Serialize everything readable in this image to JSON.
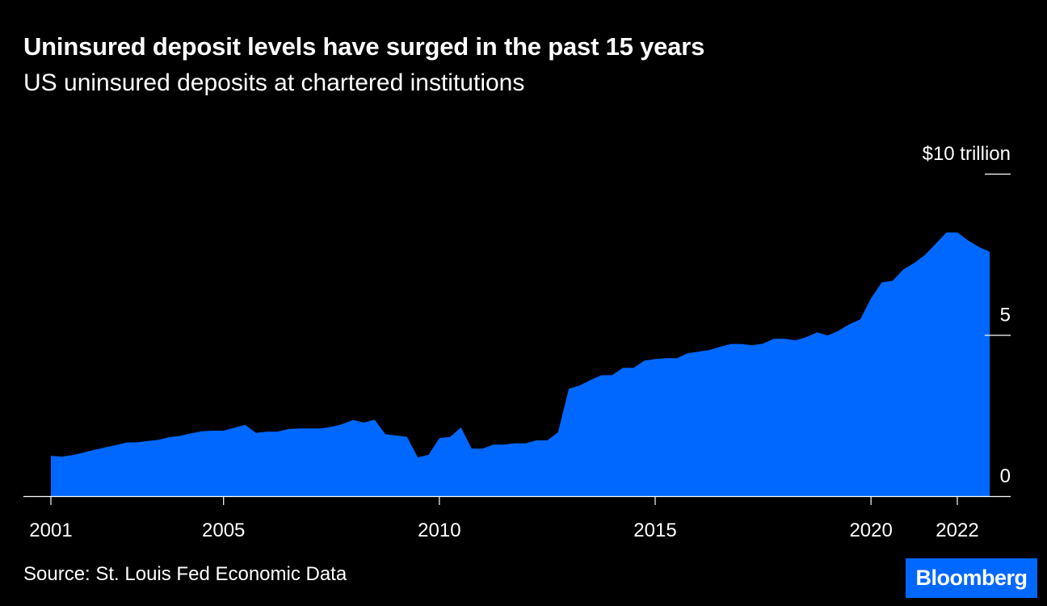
{
  "header": {
    "title": "Uninsured deposit levels have surged in the past 15 years",
    "subtitle": "US uninsured deposits at chartered institutions"
  },
  "footer": {
    "source": "Source: St. Louis Fed Economic Data",
    "brand": "Bloomberg"
  },
  "colors": {
    "background": "#000000",
    "area": "#0068ff",
    "text": "#ffffff",
    "brand": "#0068ff"
  },
  "chart_data": {
    "type": "area",
    "title": "Uninsured deposit levels have surged in the past 15 years",
    "subtitle": "US uninsured deposits at chartered institutions",
    "xlabel": "",
    "ylabel": "",
    "unit": "$ trillion",
    "xlim": [
      2001,
      2022
    ],
    "ylim": [
      0,
      10
    ],
    "x_ticks": [
      {
        "value": 2001,
        "label": "2001"
      },
      {
        "value": 2005,
        "label": "2005"
      },
      {
        "value": 2010,
        "label": "2010"
      },
      {
        "value": 2015,
        "label": "2015"
      },
      {
        "value": 2020,
        "label": "2020"
      },
      {
        "value": 2022,
        "label": "2022"
      }
    ],
    "y_ticks": [
      {
        "value": 0,
        "label": "0"
      },
      {
        "value": 5,
        "label": "5"
      },
      {
        "value": 10,
        "label": "$10 trillion"
      }
    ],
    "grid": false,
    "legend": "none",
    "x": [
      2001.0,
      2001.25,
      2001.5,
      2001.75,
      2002.0,
      2002.25,
      2002.5,
      2002.75,
      2003.0,
      2003.25,
      2003.5,
      2003.75,
      2004.0,
      2004.25,
      2004.5,
      2004.75,
      2005.0,
      2005.25,
      2005.5,
      2005.75,
      2006.0,
      2006.25,
      2006.5,
      2006.75,
      2007.0,
      2007.25,
      2007.5,
      2007.75,
      2008.0,
      2008.25,
      2008.5,
      2008.75,
      2009.0,
      2009.25,
      2009.5,
      2009.75,
      2010.0,
      2010.25,
      2010.5,
      2010.75,
      2011.0,
      2011.25,
      2011.5,
      2011.75,
      2012.0,
      2012.25,
      2012.5,
      2012.75,
      2013.0,
      2013.25,
      2013.5,
      2013.75,
      2014.0,
      2014.25,
      2014.5,
      2014.75,
      2015.0,
      2015.25,
      2015.5,
      2015.75,
      2016.0,
      2016.25,
      2016.5,
      2016.75,
      2017.0,
      2017.25,
      2017.5,
      2017.75,
      2018.0,
      2018.25,
      2018.5,
      2018.75,
      2019.0,
      2019.25,
      2019.5,
      2019.75,
      2020.0,
      2020.25,
      2020.5,
      2020.75,
      2021.0,
      2021.25,
      2021.5,
      2021.75,
      2022.0,
      2022.25,
      2022.5,
      2022.75
    ],
    "series": [
      {
        "values": [
          1.25,
          1.22,
          1.27,
          1.35,
          1.43,
          1.51,
          1.58,
          1.66,
          1.67,
          1.71,
          1.75,
          1.83,
          1.87,
          1.95,
          2.01,
          2.03,
          2.03,
          2.12,
          2.21,
          1.96,
          2.0,
          2.0,
          2.08,
          2.1,
          2.1,
          2.1,
          2.15,
          2.23,
          2.36,
          2.28,
          2.37,
          1.92,
          1.88,
          1.84,
          1.2,
          1.28,
          1.8,
          1.84,
          2.13,
          1.47,
          1.47,
          1.6,
          1.6,
          1.64,
          1.64,
          1.73,
          1.73,
          1.98,
          3.33,
          3.43,
          3.6,
          3.75,
          3.75,
          3.98,
          3.98,
          4.2,
          4.25,
          4.28,
          4.28,
          4.43,
          4.48,
          4.53,
          4.63,
          4.72,
          4.72,
          4.68,
          4.73,
          4.88,
          4.88,
          4.83,
          4.93,
          5.08,
          4.98,
          5.13,
          5.33,
          5.48,
          6.13,
          6.63,
          6.68,
          7.03,
          7.23,
          7.48,
          7.83,
          8.18,
          8.18,
          7.93,
          7.73,
          7.58
        ]
      }
    ]
  }
}
